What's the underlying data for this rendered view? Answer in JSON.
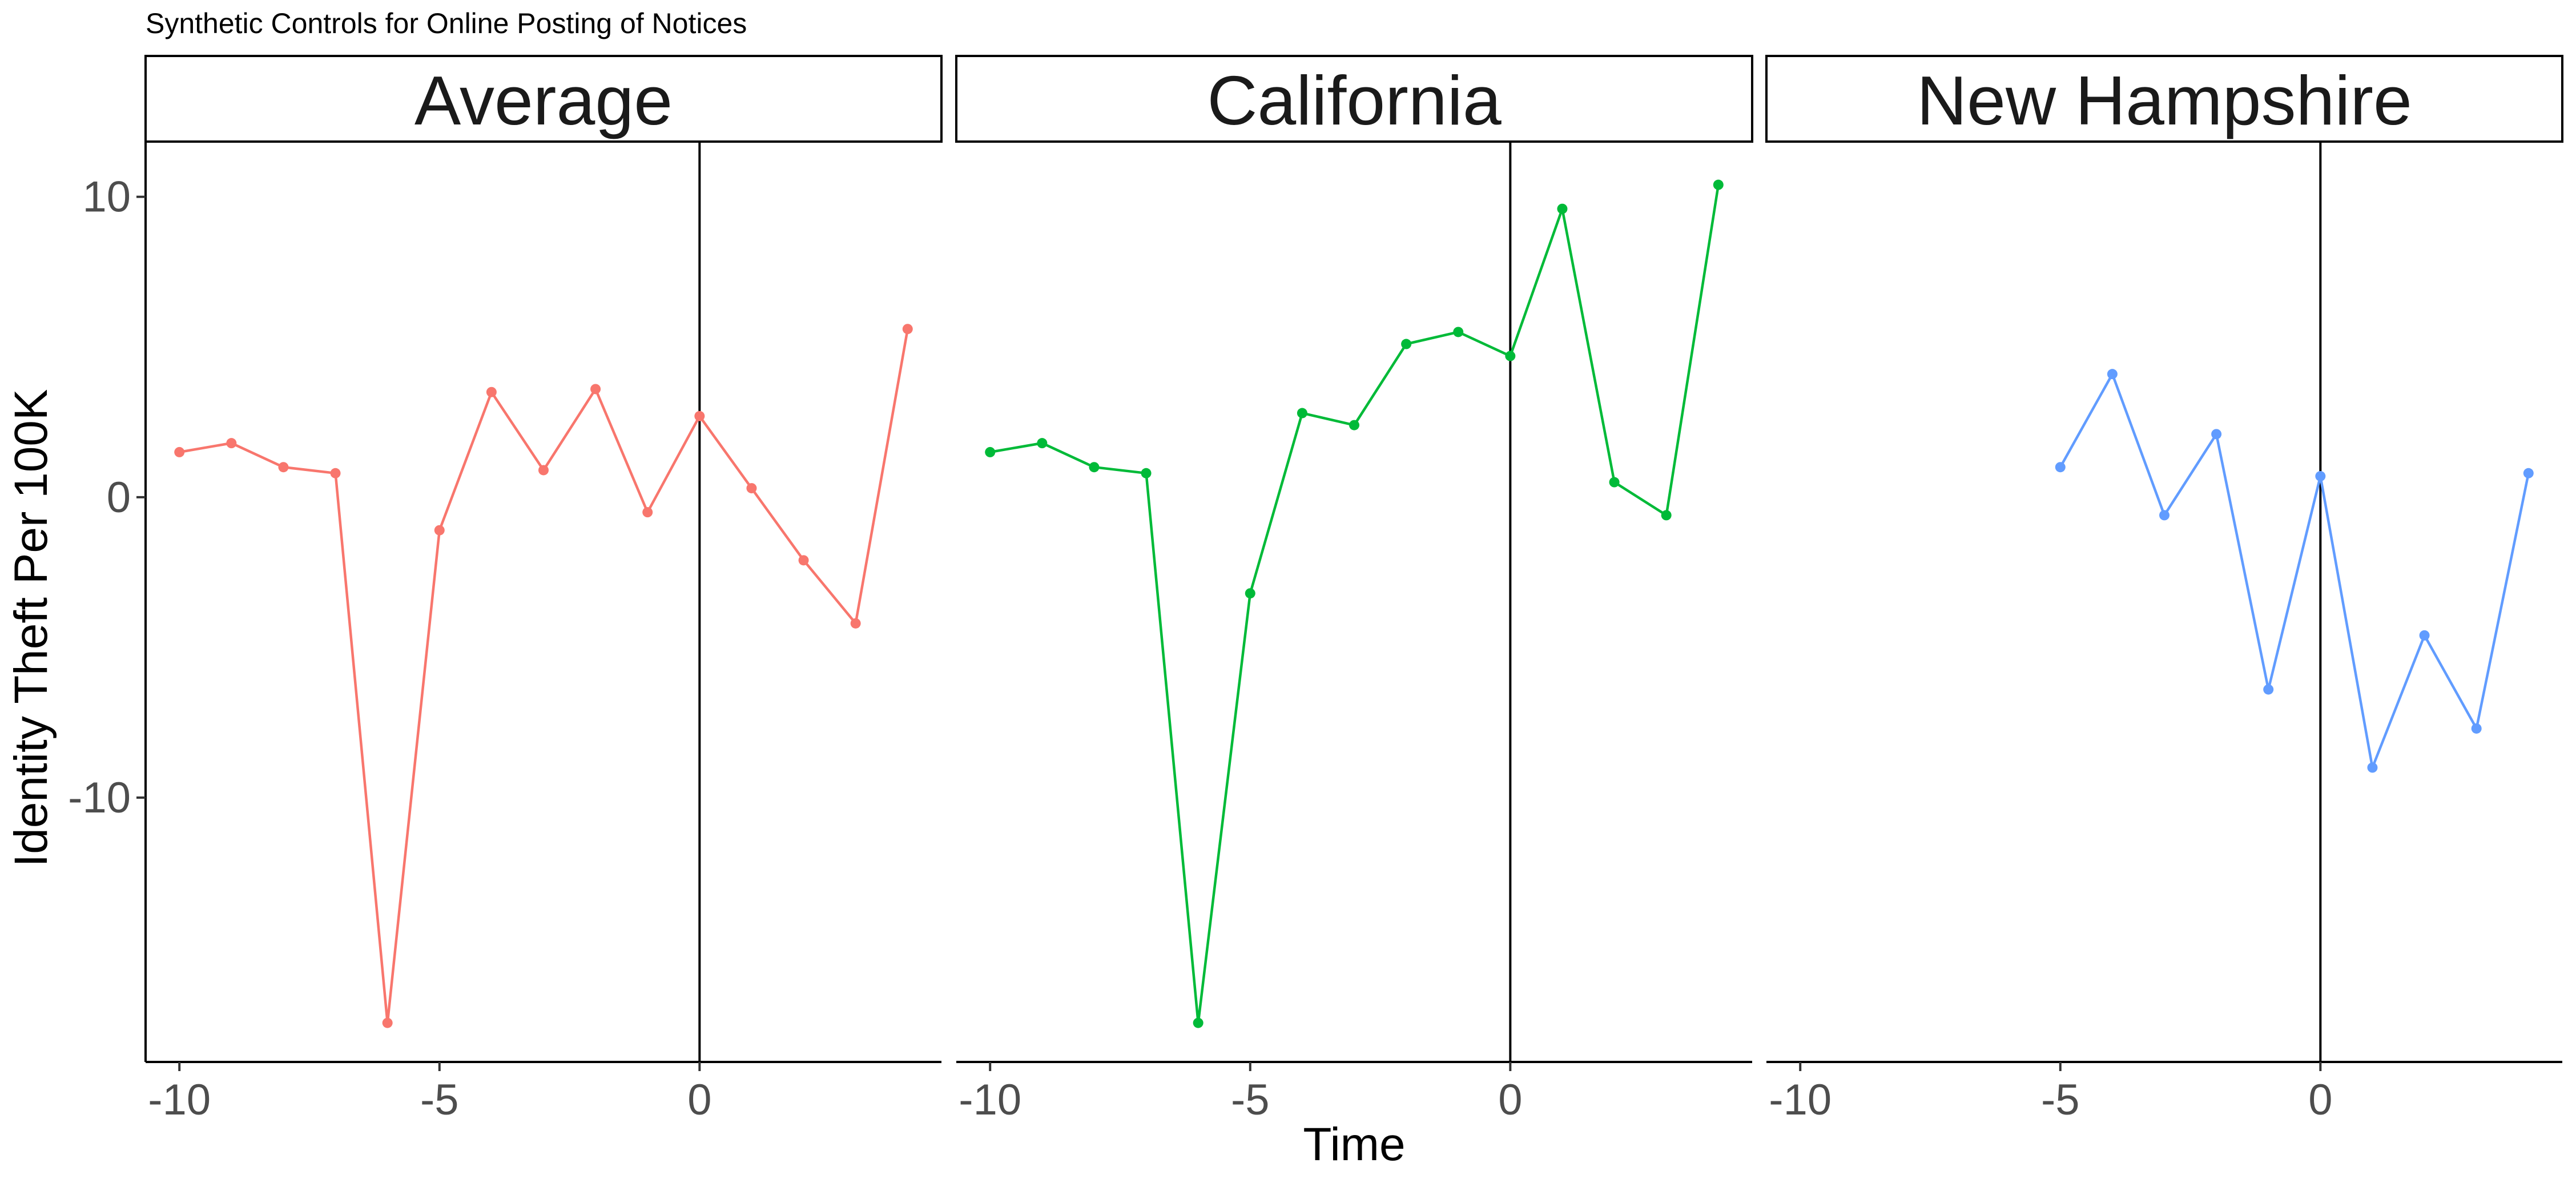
{
  "chart_data": {
    "type": "line",
    "title": "Synthetic Controls for Online Posting of Notices",
    "xlabel": "Time",
    "ylabel": "Identity Theft Per 100K",
    "xlim": [
      -10.65,
      4.65
    ],
    "ylim": [
      -18.8,
      11.8
    ],
    "x_ticks": [
      -10,
      -5,
      0
    ],
    "x_tick_labels": [
      "-10",
      "-5",
      "0"
    ],
    "y_ticks": [
      -10,
      0,
      10
    ],
    "y_tick_labels": [
      "-10",
      "0",
      "10"
    ],
    "vertical_reference_line": 0,
    "grid": false,
    "legend": "none",
    "panels": [
      {
        "name": "Average",
        "color": "#F8766D",
        "x": [
          -10,
          -9,
          -8,
          -7,
          -6,
          -5,
          -4,
          -3,
          -2,
          -1,
          0,
          1,
          2,
          3,
          4
        ],
        "y": [
          1.5,
          1.8,
          1.0,
          0.8,
          -17.5,
          -1.1,
          3.5,
          0.9,
          3.6,
          -0.5,
          2.7,
          0.3,
          -2.1,
          -4.2,
          5.6
        ]
      },
      {
        "name": "California",
        "color": "#00BA38",
        "x": [
          -10,
          -9,
          -8,
          -7,
          -6,
          -5,
          -4,
          -3,
          -2,
          -1,
          0,
          1,
          2,
          3,
          4
        ],
        "y": [
          1.5,
          1.8,
          1.0,
          0.8,
          -17.5,
          -3.2,
          2.8,
          2.4,
          5.1,
          5.5,
          4.7,
          9.6,
          0.5,
          -0.6,
          10.4
        ]
      },
      {
        "name": "New Hampshire",
        "color": "#619CFF",
        "x": [
          -5,
          -4,
          -3,
          -2,
          -1,
          0,
          1,
          2,
          3,
          4
        ],
        "y": [
          1.0,
          4.1,
          -0.6,
          2.1,
          -6.4,
          0.7,
          -9.0,
          -4.6,
          -7.7,
          0.8
        ]
      }
    ]
  }
}
